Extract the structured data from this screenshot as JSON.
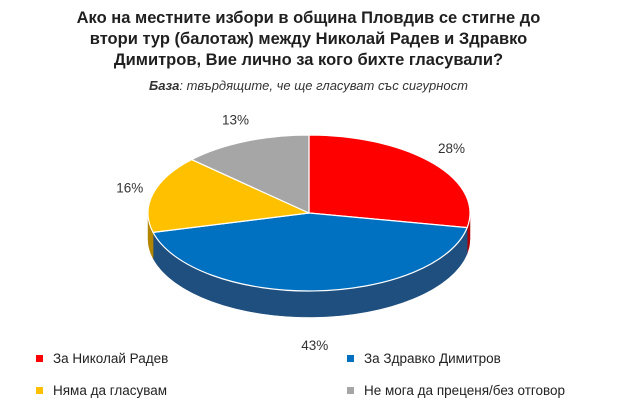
{
  "chart_data": {
    "type": "pie",
    "title_lines": [
      "Ако на местните избори в община Пловдив се стигне до",
      "втори тур (балотаж) между Николай Радев и Здравко",
      "Димитров, Вие лично за кого бихте гласували?"
    ],
    "subtitle": {
      "label": "База",
      "text": ": твърдящите, че ще гласуват със сигурност"
    },
    "slices": [
      {
        "label": "За Николай Радев",
        "value": 28,
        "display": "28%",
        "color": "#ff0000",
        "side": "#b00000"
      },
      {
        "label": "За Здравко Димитров",
        "value": 43,
        "display": "43%",
        "color": "#0070c0",
        "side": "#1f4f7f"
      },
      {
        "label": "Няма да гласувам",
        "value": 16,
        "display": "16%",
        "color": "#ffc000",
        "side": "#b38600"
      },
      {
        "label": "Не мога да преценя/без отговор",
        "value": 13,
        "display": "13%",
        "color": "#a6a6a6",
        "side": "#6f6f6f"
      }
    ],
    "legend_position": "bottom"
  }
}
